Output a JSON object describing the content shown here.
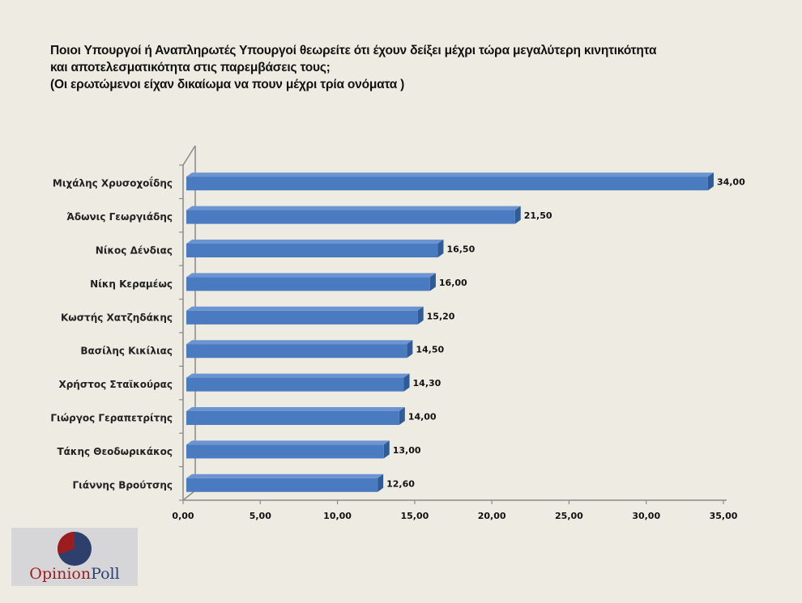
{
  "title": {
    "lines": [
      "Ποιοι Υπουργοί ή Αναπληρωτές Υπουργοί θεωρείτε ότι έχουν δείξει μέχρι τώρα μεγαλύτερη κινητικότητα",
      "και αποτελεσματικότητα στις παρεμβάσεις τους;",
      "(Οι ερωτώμενοι είχαν δικαίωμα να πουν μέχρι τρία ονόματα )"
    ]
  },
  "chart_data": {
    "type": "bar",
    "orientation": "horizontal",
    "style": "3d",
    "title": "Ποιοι Υπουργοί ή Αναπληρωτές Υπουργοί θεωρείτε ότι έχουν δείξει μέχρι τώρα μεγαλύτερη κινητικότητα και αποτελεσματικότητα στις παρεμβάσεις τους; (Οι ερωτώμενοι είχαν δικαίωμα να πουν μέχρι τρία ονόματα )",
    "categories": [
      "Μιχάλης Χρυσοχοΐδης",
      "Άδωνις Γεωργιάδης",
      "Νίκος Δένδιας",
      "Νίκη Κεραμέως",
      "Κωστής Χατζηδάκης",
      "Βασίλης Κικίλιας",
      "Χρήστος Σταϊκούρας",
      "Γιώργος Γεραπετρίτης",
      "Τάκης Θεοδωρικάκος",
      "Γιάννης Βρούτσης"
    ],
    "values": [
      34.0,
      21.5,
      16.5,
      16.0,
      15.2,
      14.5,
      14.3,
      14.0,
      13.0,
      12.6
    ],
    "value_labels": [
      "34,00",
      "21,50",
      "16,50",
      "16,00",
      "15,20",
      "14,50",
      "14,30",
      "14,00",
      "13,00",
      "12,60"
    ],
    "xlabel": "",
    "ylabel": "",
    "xlim": [
      0,
      35
    ],
    "xticks": [
      0,
      5,
      10,
      15,
      20,
      25,
      30,
      35
    ],
    "xtick_labels": [
      "0,00",
      "5,00",
      "10,00",
      "15,00",
      "20,00",
      "25,00",
      "30,00",
      "35,00"
    ],
    "grid": false,
    "legend": "none",
    "colors": {
      "bar_front": "#4a7bc0",
      "bar_top": "#6b95d2",
      "bar_side": "#2f5b96",
      "axis": "#8a8a8a"
    }
  },
  "logo": {
    "word1": "Opinion",
    "word2": "Poll",
    "colors": {
      "red": "#9d1c1f",
      "navy": "#2f3f6d"
    }
  }
}
